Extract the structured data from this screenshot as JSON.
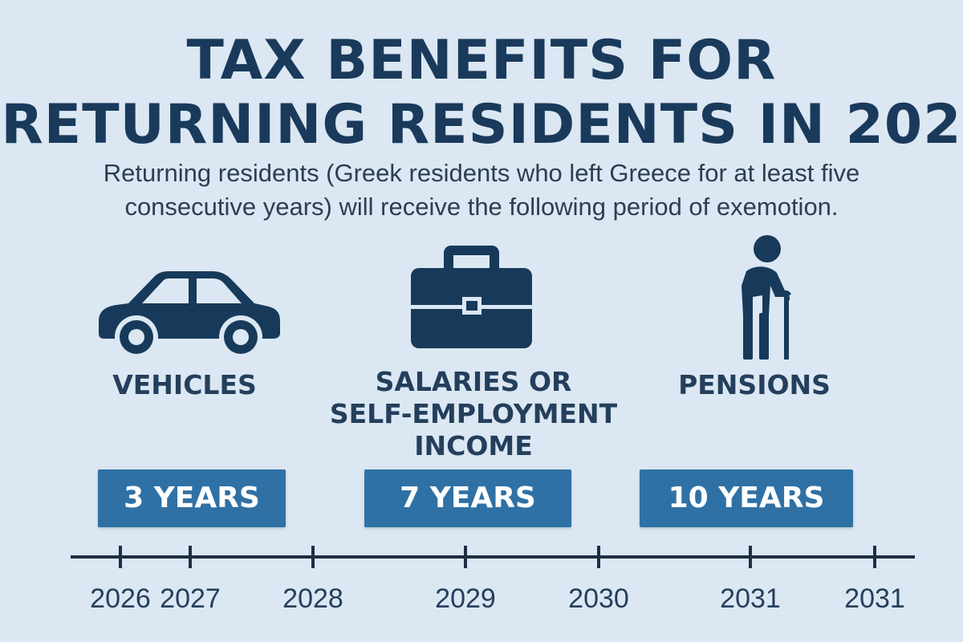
{
  "title": {
    "line1": "TAX BENEFITS FOR",
    "line2": "RETURNING RESIDENTS IN 202"
  },
  "subtitle": {
    "line1": "Returning residents (Greek residents who left Greece for at least five",
    "line2": "consecutive years) will receive the following period of exemotion."
  },
  "categories": [
    {
      "label_lines": [
        "VEHICLES"
      ],
      "duration": "3 YEARS",
      "icon": "car-icon"
    },
    {
      "label_lines": [
        "SALARIES OR",
        "SELF-EMPLOYMENT",
        "INCOME"
      ],
      "duration": "7 YEARS",
      "icon": "briefcase-icon"
    },
    {
      "label_lines": [
        "PENSIONS"
      ],
      "duration": "10 YEARS",
      "icon": "elderly-person-with-cane-icon"
    }
  ],
  "timeline": {
    "years": [
      "2026",
      "2027",
      "2028",
      "2029",
      "2030",
      "2031",
      "2031"
    ]
  },
  "colors": {
    "background": "#dbe7f2",
    "title": "#1a3a5c",
    "icon": "#173a5a",
    "badge": "#2f71a5",
    "badge_text": "#ffffff"
  }
}
